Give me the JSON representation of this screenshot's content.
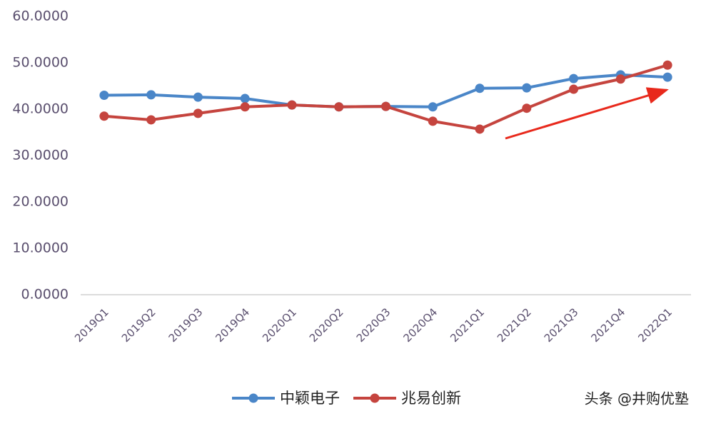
{
  "chart_data": {
    "type": "line",
    "categories": [
      "2019Q1",
      "2019Q2",
      "2019Q3",
      "2019Q4",
      "2020Q1",
      "2020Q2",
      "2020Q3",
      "2020Q4",
      "2021Q1",
      "2021Q2",
      "2021Q3",
      "2021Q4",
      "2022Q1"
    ],
    "series": [
      {
        "name": "中颖电子",
        "color": "#4a86c8",
        "values": [
          43.0,
          43.1,
          42.6,
          42.3,
          40.9,
          40.5,
          40.6,
          40.5,
          44.5,
          44.6,
          46.6,
          47.4,
          46.9
        ]
      },
      {
        "name": "兆易创新",
        "color": "#c5443e",
        "values": [
          38.5,
          37.7,
          39.1,
          40.5,
          40.9,
          40.5,
          40.6,
          37.4,
          35.7,
          40.2,
          44.3,
          46.5,
          49.5
        ]
      }
    ],
    "ylim": [
      0,
      60
    ],
    "yticks": [
      {
        "value": 0,
        "label": "0.0000"
      },
      {
        "value": 10,
        "label": "10.0000"
      },
      {
        "value": 20,
        "label": "20.0000"
      },
      {
        "value": 30,
        "label": "30.0000"
      },
      {
        "value": 40,
        "label": "40.0000"
      },
      {
        "value": 50,
        "label": "50.0000"
      },
      {
        "value": 60,
        "label": "60.0000"
      }
    ],
    "grid": false,
    "legend": "bottom",
    "watermark": "头条 @井购优塾"
  }
}
